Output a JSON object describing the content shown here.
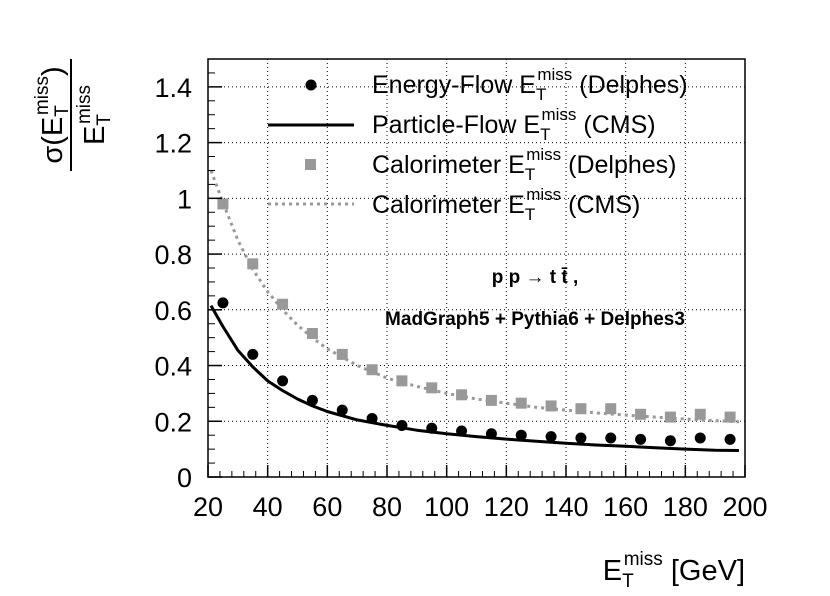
{
  "chart_data": {
    "type": "scatter",
    "xlim": [
      20,
      200
    ],
    "ylim": [
      0,
      1.5
    ],
    "grid": true,
    "legend_position": "top-right",
    "x_ticks": [
      20,
      40,
      60,
      80,
      100,
      120,
      140,
      160,
      180,
      200
    ],
    "y_ticks": [
      0,
      0.2,
      0.4,
      0.6,
      0.8,
      1,
      1.2,
      1.4
    ],
    "x_tick_labels": [
      "20",
      "40",
      "60",
      "80",
      "100",
      "120",
      "140",
      "160",
      "180",
      "200"
    ],
    "y_tick_labels": [
      "0",
      "0.2",
      "0.4",
      "0.6",
      "0.8",
      "1",
      "1.2",
      "1.4"
    ],
    "xlabel": {
      "main": "E",
      "sub": "T",
      "sup": "miss",
      "unit": " [GeV]"
    },
    "ylabel": {
      "numer_prefix": "σ(E",
      "numer_sub": "T",
      "numer_sup": "miss",
      "numer_suffix": ")",
      "denom_main": "E",
      "denom_sub": "T",
      "denom_sup": "miss"
    },
    "annotations": {
      "process": "p p → t t̄ ,",
      "generator": "MadGraph5 + Pythia6 + Delphes3"
    },
    "series": [
      {
        "name": "Energy-Flow E_T^miss (Delphes)",
        "label_main": "Energy-Flow E",
        "label_sub": "T",
        "label_sup": "miss",
        "label_suffix": " (Delphes)",
        "style": "markers-circle",
        "color": "#000000",
        "x": [
          25,
          35,
          45,
          55,
          65,
          75,
          85,
          95,
          105,
          115,
          125,
          135,
          145,
          155,
          165,
          175,
          185,
          195
        ],
        "y": [
          0.625,
          0.44,
          0.345,
          0.275,
          0.24,
          0.21,
          0.185,
          0.175,
          0.165,
          0.155,
          0.15,
          0.145,
          0.14,
          0.14,
          0.135,
          0.13,
          0.14,
          0.135
        ]
      },
      {
        "name": "Particle-Flow E_T^miss (CMS)",
        "label_main": "Particle-Flow E",
        "label_sub": "T",
        "label_sup": "miss",
        "label_suffix": " (CMS)",
        "style": "line-solid",
        "color": "#000000",
        "x": [
          21,
          25,
          30,
          35,
          40,
          45,
          50,
          55,
          60,
          70,
          80,
          90,
          100,
          110,
          120,
          130,
          140,
          150,
          160,
          170,
          180,
          190,
          198
        ],
        "y": [
          0.615,
          0.54,
          0.455,
          0.395,
          0.345,
          0.31,
          0.28,
          0.255,
          0.235,
          0.205,
          0.185,
          0.168,
          0.155,
          0.145,
          0.136,
          0.128,
          0.121,
          0.115,
          0.11,
          0.105,
          0.1,
          0.096,
          0.095
        ]
      },
      {
        "name": "Calorimeter E_T^miss (Delphes)",
        "label_main": "Calorimeter E",
        "label_sub": "T",
        "label_sup": "miss",
        "label_suffix": " (Delphes)",
        "style": "markers-square",
        "color": "#999999",
        "x": [
          25,
          35,
          45,
          55,
          65,
          75,
          85,
          95,
          105,
          115,
          125,
          135,
          145,
          155,
          165,
          175,
          185,
          195
        ],
        "y": [
          0.98,
          0.765,
          0.62,
          0.515,
          0.44,
          0.385,
          0.345,
          0.32,
          0.295,
          0.275,
          0.265,
          0.255,
          0.245,
          0.245,
          0.225,
          0.215,
          0.225,
          0.215
        ]
      },
      {
        "name": "Calorimeter E_T^miss (CMS)",
        "label_main": "Calorimeter E",
        "label_sub": "T",
        "label_sup": "miss",
        "label_suffix": " (CMS)",
        "style": "line-dotted",
        "color": "#999999",
        "x": [
          21,
          25,
          30,
          35,
          40,
          45,
          50,
          55,
          60,
          70,
          80,
          90,
          100,
          110,
          120,
          130,
          140,
          150,
          160,
          170,
          180,
          190,
          198
        ],
        "y": [
          1.1,
          0.985,
          0.85,
          0.745,
          0.665,
          0.6,
          0.545,
          0.5,
          0.46,
          0.4,
          0.355,
          0.325,
          0.3,
          0.28,
          0.265,
          0.25,
          0.24,
          0.23,
          0.222,
          0.215,
          0.208,
          0.202,
          0.198
        ]
      }
    ]
  }
}
